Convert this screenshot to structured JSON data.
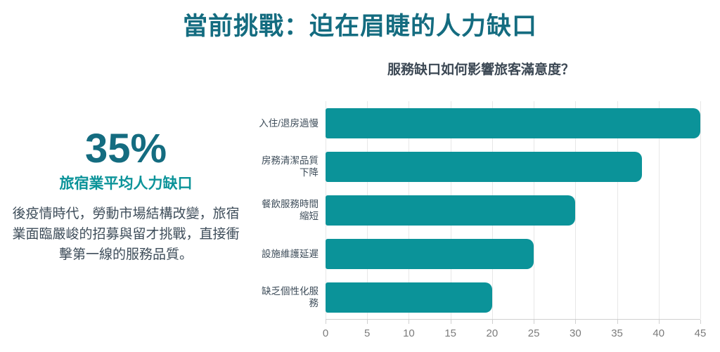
{
  "title": "當前挑戰：迫在眉睫的人力缺口",
  "stat": {
    "value": "35%",
    "label": "旅宿業平均人力缺口",
    "description": "後疫情時代，勞動市場結構改變，旅宿業面臨嚴峻的招募與留才挑戰，直接衝擊第一線的服務品質。"
  },
  "colors": {
    "accent": "#0b9399",
    "accent_dark": "#146c80",
    "text_dark": "#3e4d5a",
    "axis_text": "#7b7b7b",
    "gridline": "#e7e7e7"
  },
  "chart_data": {
    "type": "bar",
    "orientation": "horizontal",
    "title": "服務缺口如何影響旅客滿意度？",
    "categories": [
      "入住/退房過慢",
      "房務清潔品質下降",
      "餐飲服務時間縮短",
      "設施維護延遲",
      "缺乏個性化服務"
    ],
    "values": [
      45,
      38,
      30,
      25,
      20
    ],
    "xlabel": "",
    "ylabel": "",
    "xlim": [
      0,
      45
    ],
    "ticks": [
      0,
      5,
      10,
      15,
      20,
      25,
      30,
      35,
      40,
      45
    ],
    "grid": true,
    "legend": false,
    "bar_color": "#0b9399"
  }
}
